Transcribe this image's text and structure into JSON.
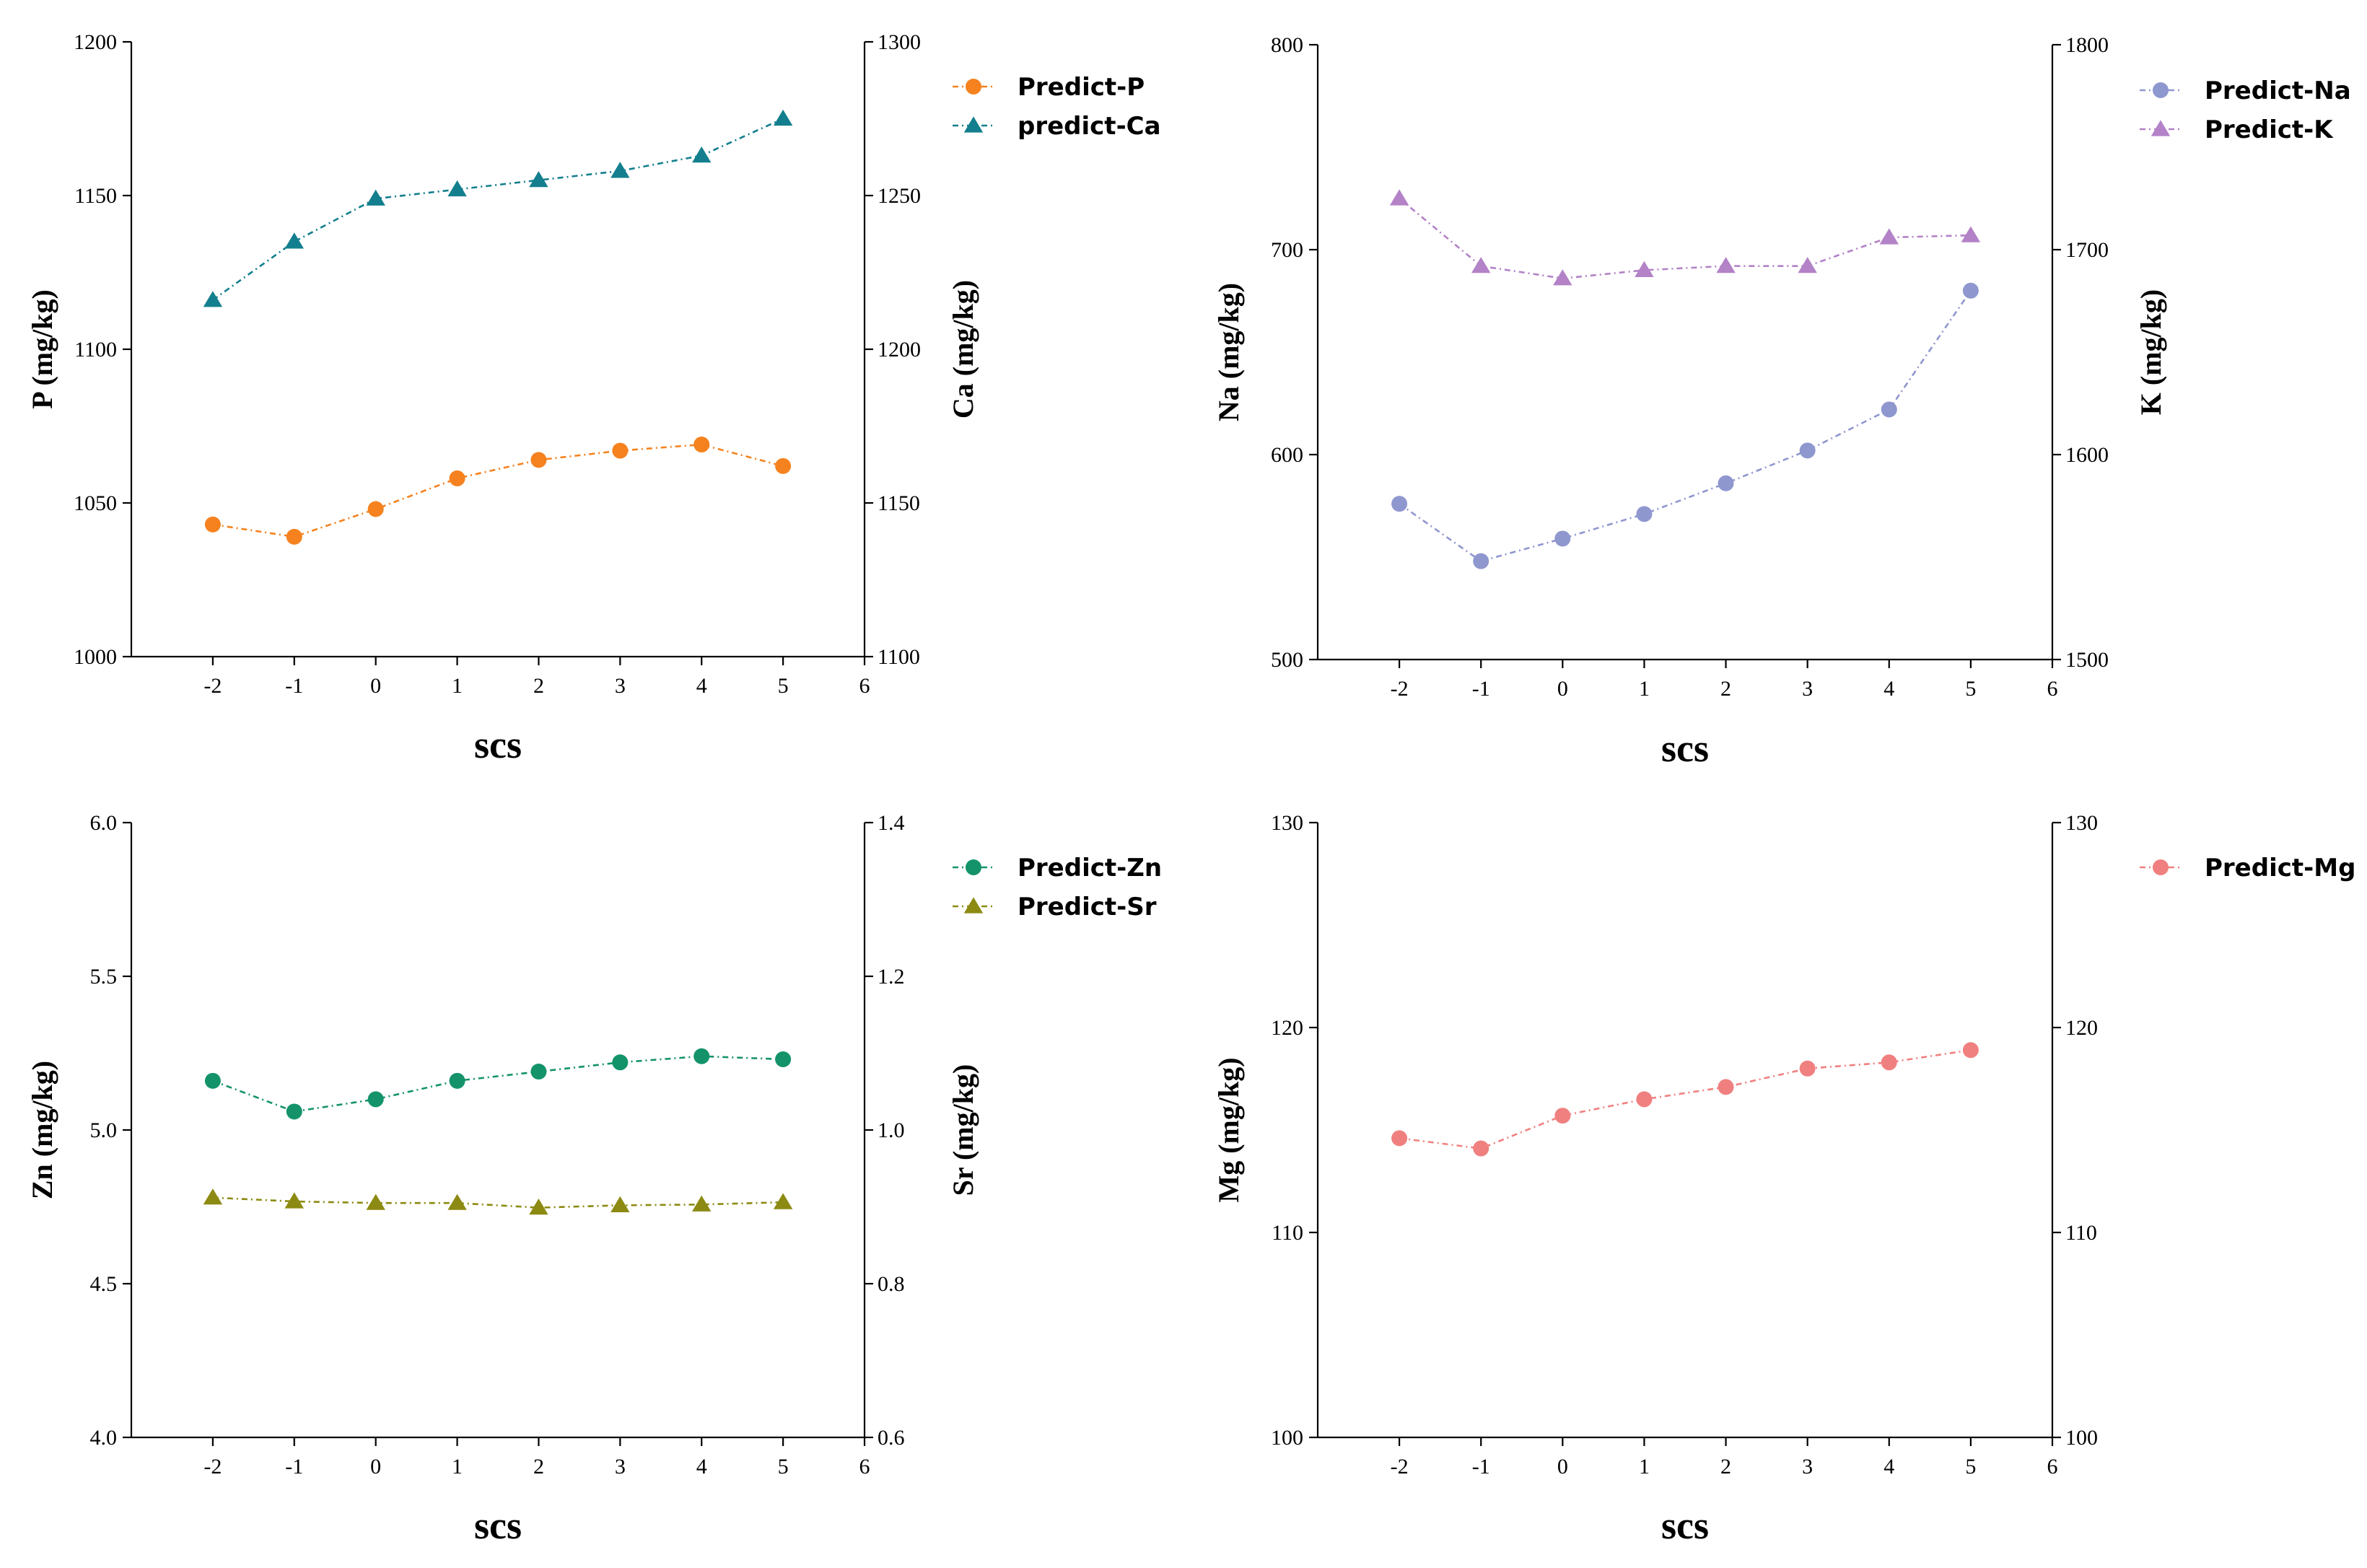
{
  "chart_data": [
    {
      "type": "line",
      "xlabel": "scs",
      "x": [
        -2,
        -1,
        0,
        1,
        2,
        3,
        4,
        5
      ],
      "xlim": [
        -3,
        6
      ],
      "xticks": [
        -2,
        -1,
        0,
        1,
        2,
        3,
        4,
        5,
        6
      ],
      "left_axis": {
        "label": "P (mg/kg)",
        "ylim": [
          1000,
          1200
        ],
        "ticks": [
          "1000",
          "1050",
          "1100",
          "1150",
          "1200"
        ]
      },
      "right_axis": {
        "label": "Ca (mg/kg)",
        "ylim": [
          1100,
          1300
        ],
        "ticks": [
          "1100",
          "1150",
          "1200",
          "1250",
          "1300"
        ]
      },
      "series": [
        {
          "name": "Predict-P",
          "axis": "left",
          "marker": "circle",
          "color": "#F5821F",
          "values": [
            1043,
            1039,
            1048,
            1058,
            1064,
            1067,
            1069,
            1062
          ]
        },
        {
          "name": "predict-Ca",
          "axis": "right",
          "marker": "triangle",
          "color": "#137F8E",
          "values": [
            1216,
            1235,
            1249,
            1252,
            1255,
            1258,
            1263,
            1275
          ]
        }
      ],
      "legend_position": "right"
    },
    {
      "type": "line",
      "xlabel": "scs",
      "x": [
        -2,
        -1,
        0,
        1,
        2,
        3,
        4,
        5
      ],
      "xlim": [
        -3,
        6
      ],
      "xticks": [
        -2,
        -1,
        0,
        1,
        2,
        3,
        4,
        5,
        6
      ],
      "left_axis": {
        "label": "Na (mg/kg)",
        "ylim": [
          500,
          800
        ],
        "ticks": [
          "500",
          "600",
          "700",
          "800"
        ]
      },
      "right_axis": {
        "label": "K (mg/kg)",
        "ylim": [
          1500,
          1800
        ],
        "ticks": [
          "1500",
          "1600",
          "1700",
          "1800"
        ]
      },
      "series": [
        {
          "name": "Predict-Na",
          "axis": "left",
          "marker": "circle",
          "color": "#8F97CF",
          "values": [
            576,
            548,
            559,
            571,
            586,
            602,
            622,
            680
          ]
        },
        {
          "name": "Predict-K",
          "axis": "right",
          "marker": "triangle",
          "color": "#B382C7",
          "values": [
            1725,
            1692,
            1686,
            1690,
            1692,
            1692,
            1706,
            1707
          ]
        }
      ],
      "legend_position": "right"
    },
    {
      "type": "line",
      "xlabel": "scs",
      "x": [
        -2,
        -1,
        0,
        1,
        2,
        3,
        4,
        5
      ],
      "xlim": [
        -3,
        6
      ],
      "xticks": [
        -2,
        -1,
        0,
        1,
        2,
        3,
        4,
        5,
        6
      ],
      "left_axis": {
        "label": "Zn (mg/kg)",
        "ylim": [
          4.0,
          6.0
        ],
        "ticks": [
          "4.0",
          "4.5",
          "5.0",
          "5.5",
          "6.0"
        ]
      },
      "right_axis": {
        "label": "Sr (mg/kg)",
        "ylim": [
          0.6,
          1.4
        ],
        "ticks": [
          "0.6",
          "0.8",
          "1.0",
          "1.2",
          "1.4"
        ]
      },
      "series": [
        {
          "name": "Predict-Zn",
          "axis": "left",
          "marker": "circle",
          "color": "#14936A",
          "values": [
            5.16,
            5.06,
            5.1,
            5.16,
            5.19,
            5.22,
            5.24,
            5.23
          ]
        },
        {
          "name": "Predict-Sr",
          "axis": "right",
          "marker": "triangle",
          "color": "#8C8A12",
          "values": [
            0.912,
            0.907,
            0.905,
            0.905,
            0.899,
            0.902,
            0.903,
            0.906
          ]
        }
      ],
      "legend_position": "right"
    },
    {
      "type": "line",
      "xlabel": "scs",
      "x": [
        -2,
        -1,
        0,
        1,
        2,
        3,
        4,
        5
      ],
      "xlim": [
        -3,
        6
      ],
      "xticks": [
        -2,
        -1,
        0,
        1,
        2,
        3,
        4,
        5,
        6
      ],
      "left_axis": {
        "label": "Mg (mg/kg)",
        "ylim": [
          100,
          130
        ],
        "ticks": [
          "100",
          "110",
          "120",
          "130"
        ]
      },
      "right_axis": {
        "label": "",
        "ylim": [
          100,
          130
        ],
        "ticks": [
          "100",
          "110",
          "120",
          "130"
        ]
      },
      "series": [
        {
          "name": "Predict-Mg",
          "axis": "left",
          "marker": "circle",
          "color": "#F08080",
          "values": [
            114.6,
            114.1,
            115.7,
            116.5,
            117.1,
            118.0,
            118.3,
            118.9
          ]
        }
      ],
      "legend_position": "right"
    }
  ]
}
